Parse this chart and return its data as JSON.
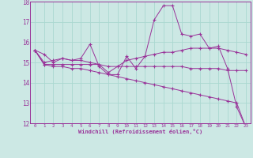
{
  "xlabel": "Windchill (Refroidissement éolien,°C)",
  "background_color": "#cce8e4",
  "grid_color": "#aad8d0",
  "line_color": "#993399",
  "x": [
    0,
    1,
    2,
    3,
    4,
    5,
    6,
    7,
    8,
    9,
    10,
    11,
    12,
    13,
    14,
    15,
    16,
    17,
    18,
    19,
    20,
    21,
    22,
    23
  ],
  "line1": [
    15.6,
    15.4,
    15.0,
    15.2,
    15.1,
    15.2,
    15.9,
    14.8,
    14.4,
    14.4,
    15.3,
    14.7,
    15.3,
    17.1,
    17.8,
    17.8,
    16.4,
    16.3,
    16.4,
    15.7,
    15.8,
    14.7,
    12.8,
    11.8
  ],
  "line2": [
    15.6,
    15.0,
    15.1,
    15.2,
    15.1,
    15.1,
    15.0,
    14.9,
    14.5,
    14.8,
    15.1,
    15.2,
    15.3,
    15.4,
    15.5,
    15.5,
    15.6,
    15.7,
    15.7,
    15.7,
    15.7,
    15.6,
    15.5,
    15.4
  ],
  "line3": [
    15.6,
    14.9,
    14.9,
    14.9,
    14.9,
    14.9,
    14.9,
    14.9,
    14.8,
    14.8,
    14.8,
    14.8,
    14.8,
    14.8,
    14.8,
    14.8,
    14.8,
    14.7,
    14.7,
    14.7,
    14.7,
    14.6,
    14.6,
    14.6
  ],
  "line4": [
    15.6,
    14.9,
    14.8,
    14.8,
    14.7,
    14.7,
    14.6,
    14.5,
    14.4,
    14.3,
    14.2,
    14.1,
    14.0,
    13.9,
    13.8,
    13.7,
    13.6,
    13.5,
    13.4,
    13.3,
    13.2,
    13.1,
    13.0,
    11.8
  ],
  "ylim": [
    12,
    18
  ],
  "yticks": [
    12,
    13,
    14,
    15,
    16,
    17,
    18
  ],
  "xticks": [
    0,
    1,
    2,
    3,
    4,
    5,
    6,
    7,
    8,
    9,
    10,
    11,
    12,
    13,
    14,
    15,
    16,
    17,
    18,
    19,
    20,
    21,
    22,
    23
  ]
}
